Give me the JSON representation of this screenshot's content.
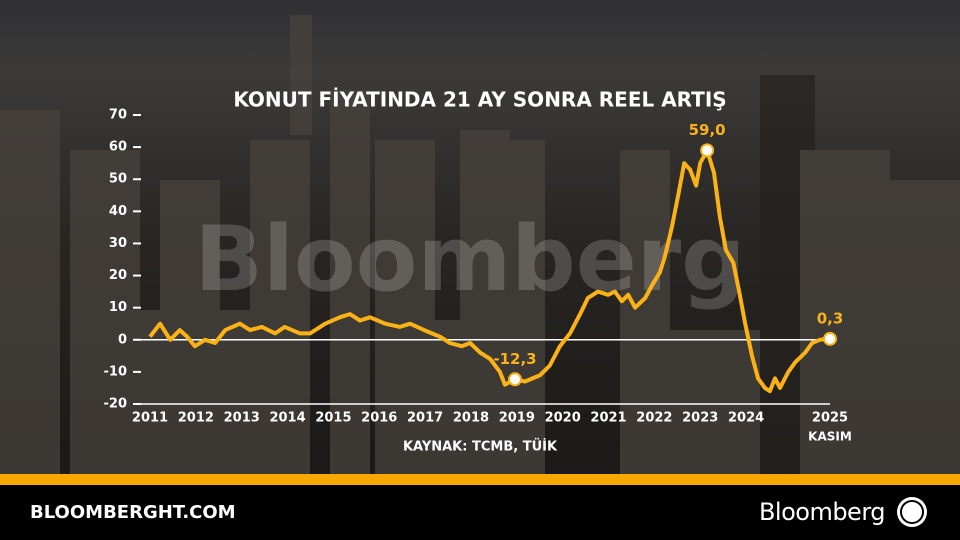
{
  "chart_data": {
    "type": "line",
    "title": "KONUT FİYATINDA 21 AY SONRA REEL ARTIŞ",
    "source": "KAYNAK: TCMB, TÜİK",
    "x_note": "KASIM",
    "watermark": "Bloomberg",
    "color": "#fbb217",
    "x": [
      2011.0,
      2011.22,
      2011.44,
      2011.65,
      2011.81,
      2011.98,
      2012.2,
      2012.42,
      2012.64,
      2012.96,
      2013.18,
      2013.44,
      2013.73,
      2013.94,
      2014.27,
      2014.49,
      2014.82,
      2015.14,
      2015.36,
      2015.58,
      2015.8,
      2016.13,
      2016.45,
      2016.67,
      2016.98,
      2017.32,
      2017.54,
      2017.8,
      2017.98,
      2018.2,
      2018.42,
      2018.63,
      2018.74,
      2018.96,
      2019.18,
      2019.51,
      2019.72,
      2019.94,
      2020.16,
      2020.38,
      2020.55,
      2020.77,
      2020.99,
      2021.14,
      2021.29,
      2021.43,
      2021.58,
      2021.8,
      2021.95,
      2022.12,
      2022.23,
      2022.38,
      2022.52,
      2022.65,
      2022.78,
      2022.91,
      2023.0,
      2023.15,
      2023.3,
      2023.43,
      2023.56,
      2023.72,
      2023.85,
      2023.98,
      2024.13,
      2024.26,
      2024.41,
      2024.52,
      2024.63,
      2024.74,
      2024.92,
      2025.07,
      2025.29,
      2025.44,
      2025.61,
      2025.83
    ],
    "values": [
      1,
      5,
      0,
      3,
      1,
      -2,
      0,
      -1,
      3,
      5,
      3,
      4,
      2,
      4,
      2,
      2,
      5,
      7,
      8,
      6,
      7,
      5,
      4,
      5,
      3,
      1,
      -1,
      -2,
      -1,
      -4,
      -6,
      -10,
      -14,
      -12.3,
      -13,
      -11,
      -8,
      -2,
      2,
      8,
      13,
      15,
      14,
      15,
      12,
      14,
      10,
      13,
      17,
      21,
      26,
      35,
      45,
      55,
      53,
      48,
      55,
      59.0,
      52,
      38,
      28,
      24,
      15,
      5,
      -5,
      -12,
      -15,
      -16,
      -12,
      -15,
      -10,
      -7,
      -4,
      -1,
      0,
      0.3
    ],
    "value_labels": [
      null,
      null,
      null,
      null,
      null,
      null,
      null,
      null,
      null,
      null,
      null,
      null,
      null,
      null,
      null,
      null,
      null,
      null,
      null,
      null,
      null,
      null,
      null,
      null,
      null,
      null,
      null,
      null,
      null,
      null,
      null,
      null,
      null,
      "-12,3",
      null,
      null,
      null,
      null,
      null,
      null,
      null,
      null,
      null,
      null,
      null,
      null,
      null,
      null,
      null,
      null,
      null,
      null,
      null,
      null,
      null,
      null,
      null,
      "59,0",
      null,
      null,
      null,
      null,
      null,
      null,
      null,
      null,
      null,
      null,
      null,
      null,
      null,
      null,
      null,
      null,
      null,
      "0,3"
    ],
    "xlim": [
      2011,
      2025.83
    ],
    "xticks": [
      2011,
      2012,
      2013,
      2014,
      2015,
      2016,
      2017,
      2018,
      2019,
      2020,
      2021,
      2022,
      2023,
      2024,
      {
        "value": 2025.83,
        "label": "2025"
      }
    ],
    "ylim": [
      -20,
      70
    ],
    "yticks": [
      -20,
      -10,
      0,
      10,
      20,
      30,
      40,
      50,
      60,
      70
    ]
  },
  "footer": {
    "site": "BLOOMBERGHT.COM",
    "brand": "Bloomberg"
  }
}
